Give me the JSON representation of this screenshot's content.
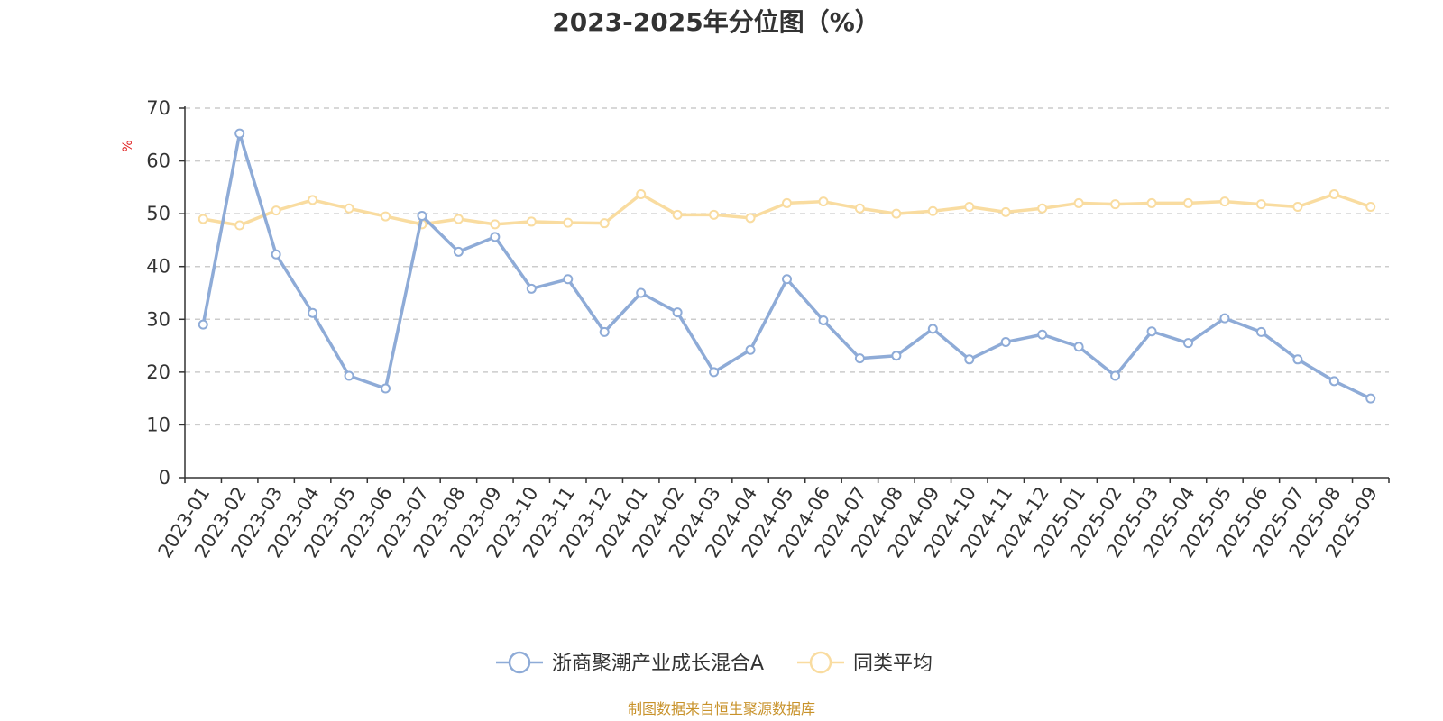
{
  "chart_data": {
    "type": "line",
    "title": "2023-2025年分位图（%）",
    "ylabel": "%",
    "ylim": [
      0,
      70
    ],
    "yticks": [
      0,
      10,
      20,
      30,
      40,
      50,
      60,
      70
    ],
    "grid": "horizontal-dashed",
    "legend_position": "bottom-center",
    "categories": [
      "2023-01",
      "2023-02",
      "2023-03",
      "2023-04",
      "2023-05",
      "2023-06",
      "2023-07",
      "2023-08",
      "2023-09",
      "2023-10",
      "2023-11",
      "2023-12",
      "2024-01",
      "2024-02",
      "2024-03",
      "2024-04",
      "2024-05",
      "2024-06",
      "2024-07",
      "2024-08",
      "2024-09",
      "2024-10",
      "2024-11",
      "2024-12",
      "2025-01",
      "2025-02",
      "2025-03",
      "2025-04",
      "2025-05",
      "2025-06",
      "2025-07",
      "2025-08",
      "2025-09"
    ],
    "series": [
      {
        "name": "浙商聚潮产业成长混合A",
        "color": "#8eabd7",
        "values": [
          29.0,
          65.2,
          42.3,
          31.2,
          19.3,
          16.9,
          49.6,
          42.8,
          45.6,
          35.8,
          37.6,
          27.6,
          35.0,
          31.3,
          20.0,
          24.2,
          37.6,
          29.8,
          22.6,
          23.1,
          28.2,
          22.4,
          25.7,
          27.1,
          24.8,
          19.3,
          27.7,
          25.5,
          30.2,
          27.6,
          22.4,
          18.3,
          15.0
        ]
      },
      {
        "name": "同类平均",
        "color": "#f9dca0",
        "values": [
          49.0,
          47.8,
          50.6,
          52.6,
          51.0,
          49.5,
          48.0,
          49.0,
          48.0,
          48.5,
          48.3,
          48.2,
          53.7,
          49.8,
          49.8,
          49.2,
          52.0,
          52.3,
          51.0,
          50.0,
          50.5,
          51.3,
          50.3,
          51.0,
          52.0,
          51.8,
          52.0,
          52.0,
          52.3,
          51.8,
          51.3,
          53.7,
          51.3
        ]
      }
    ]
  },
  "source_text": "制图数据来自恒生聚源数据库"
}
